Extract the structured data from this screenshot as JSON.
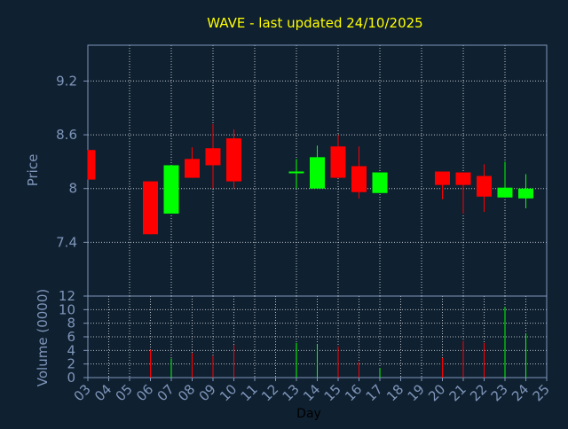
{
  "title": "WAVE - last updated 24/10/2025",
  "colors": {
    "background": "#0f2030",
    "title": "#ffff00",
    "axis_text": "#7f96ba",
    "xlabel_text": "#000000",
    "up": "#00ff00",
    "down": "#ff0000",
    "grid": "#ffffff",
    "frame": "#7f96ba"
  },
  "chart_data": [
    {
      "type": "candlestick",
      "title": "WAVE - last updated 24/10/2025",
      "ylabel": "Price",
      "xlabel": "",
      "ylim": [
        6.8,
        9.6
      ],
      "y_ticks": [
        7.4,
        8,
        8.6,
        9.2
      ],
      "y_tick_labels": [
        "7.4",
        "8",
        "8.6",
        "9.2"
      ],
      "grid": true,
      "days": [
        "03",
        "06",
        "07",
        "08",
        "09",
        "10",
        "13",
        "14",
        "15",
        "16",
        "17",
        "20",
        "21",
        "22",
        "23",
        "24"
      ],
      "series": [
        {
          "day": "03",
          "open": 8.43,
          "close": 8.1,
          "high": 8.43,
          "low": 8.1
        },
        {
          "day": "06",
          "open": 8.08,
          "close": 7.49,
          "high": 8.08,
          "low": 7.49
        },
        {
          "day": "07",
          "open": 7.72,
          "close": 8.26,
          "high": 8.26,
          "low": 7.72
        },
        {
          "day": "08",
          "open": 8.33,
          "close": 8.12,
          "high": 8.46,
          "low": 8.12
        },
        {
          "day": "09",
          "open": 8.45,
          "close": 8.26,
          "high": 8.72,
          "low": 8.0
        },
        {
          "day": "10",
          "open": 8.56,
          "close": 8.08,
          "high": 8.66,
          "low": 8.0
        },
        {
          "day": "13",
          "open": 8.18,
          "close": 8.18,
          "high": 8.33,
          "low": 8.0
        },
        {
          "day": "14",
          "open": 8.0,
          "close": 8.35,
          "high": 8.48,
          "low": 8.0
        },
        {
          "day": "15",
          "open": 8.47,
          "close": 8.12,
          "high": 8.6,
          "low": 8.12
        },
        {
          "day": "16",
          "open": 8.25,
          "close": 7.96,
          "high": 8.47,
          "low": 7.89
        },
        {
          "day": "17",
          "open": 7.95,
          "close": 8.18,
          "high": 8.18,
          "low": 7.95
        },
        {
          "day": "20",
          "open": 8.19,
          "close": 8.04,
          "high": 8.19,
          "low": 7.88
        },
        {
          "day": "21",
          "open": 8.18,
          "close": 8.04,
          "high": 8.18,
          "low": 7.72
        },
        {
          "day": "22",
          "open": 8.14,
          "close": 7.91,
          "high": 8.27,
          "low": 7.74
        },
        {
          "day": "23",
          "open": 7.9,
          "close": 8.01,
          "high": 8.3,
          "low": 7.9
        },
        {
          "day": "24",
          "open": 7.89,
          "close": 8.0,
          "high": 8.16,
          "low": 7.78
        }
      ]
    },
    {
      "type": "bar",
      "ylabel": "Volume (0000)",
      "xlabel": "Day",
      "ylim": [
        0,
        12
      ],
      "y_ticks": [
        0,
        2,
        4,
        6,
        8,
        10,
        12
      ],
      "y_tick_labels": [
        "0",
        "2",
        "4",
        "6",
        "8",
        "10",
        "12"
      ],
      "x_ticks": [
        "03",
        "04",
        "05",
        "06",
        "07",
        "08",
        "09",
        "10",
        "11",
        "12",
        "13",
        "14",
        "15",
        "16",
        "17",
        "18",
        "19",
        "20",
        "21",
        "22",
        "23",
        "24",
        "25"
      ],
      "grid": true,
      "categories": [
        "06",
        "07",
        "08",
        "09",
        "10",
        "13",
        "14",
        "15",
        "16",
        "17",
        "20",
        "21",
        "22",
        "23",
        "24"
      ],
      "values": [
        4.1,
        2.8,
        3.6,
        3.2,
        4.8,
        5.1,
        4.9,
        4.6,
        2.3,
        1.4,
        2.9,
        5.4,
        5.1,
        10.4,
        6.5
      ],
      "colors_by_bar": [
        "down",
        "up",
        "down",
        "down",
        "down",
        "up",
        "up",
        "down",
        "down",
        "up",
        "down",
        "down",
        "down",
        "up",
        "up"
      ]
    }
  ]
}
